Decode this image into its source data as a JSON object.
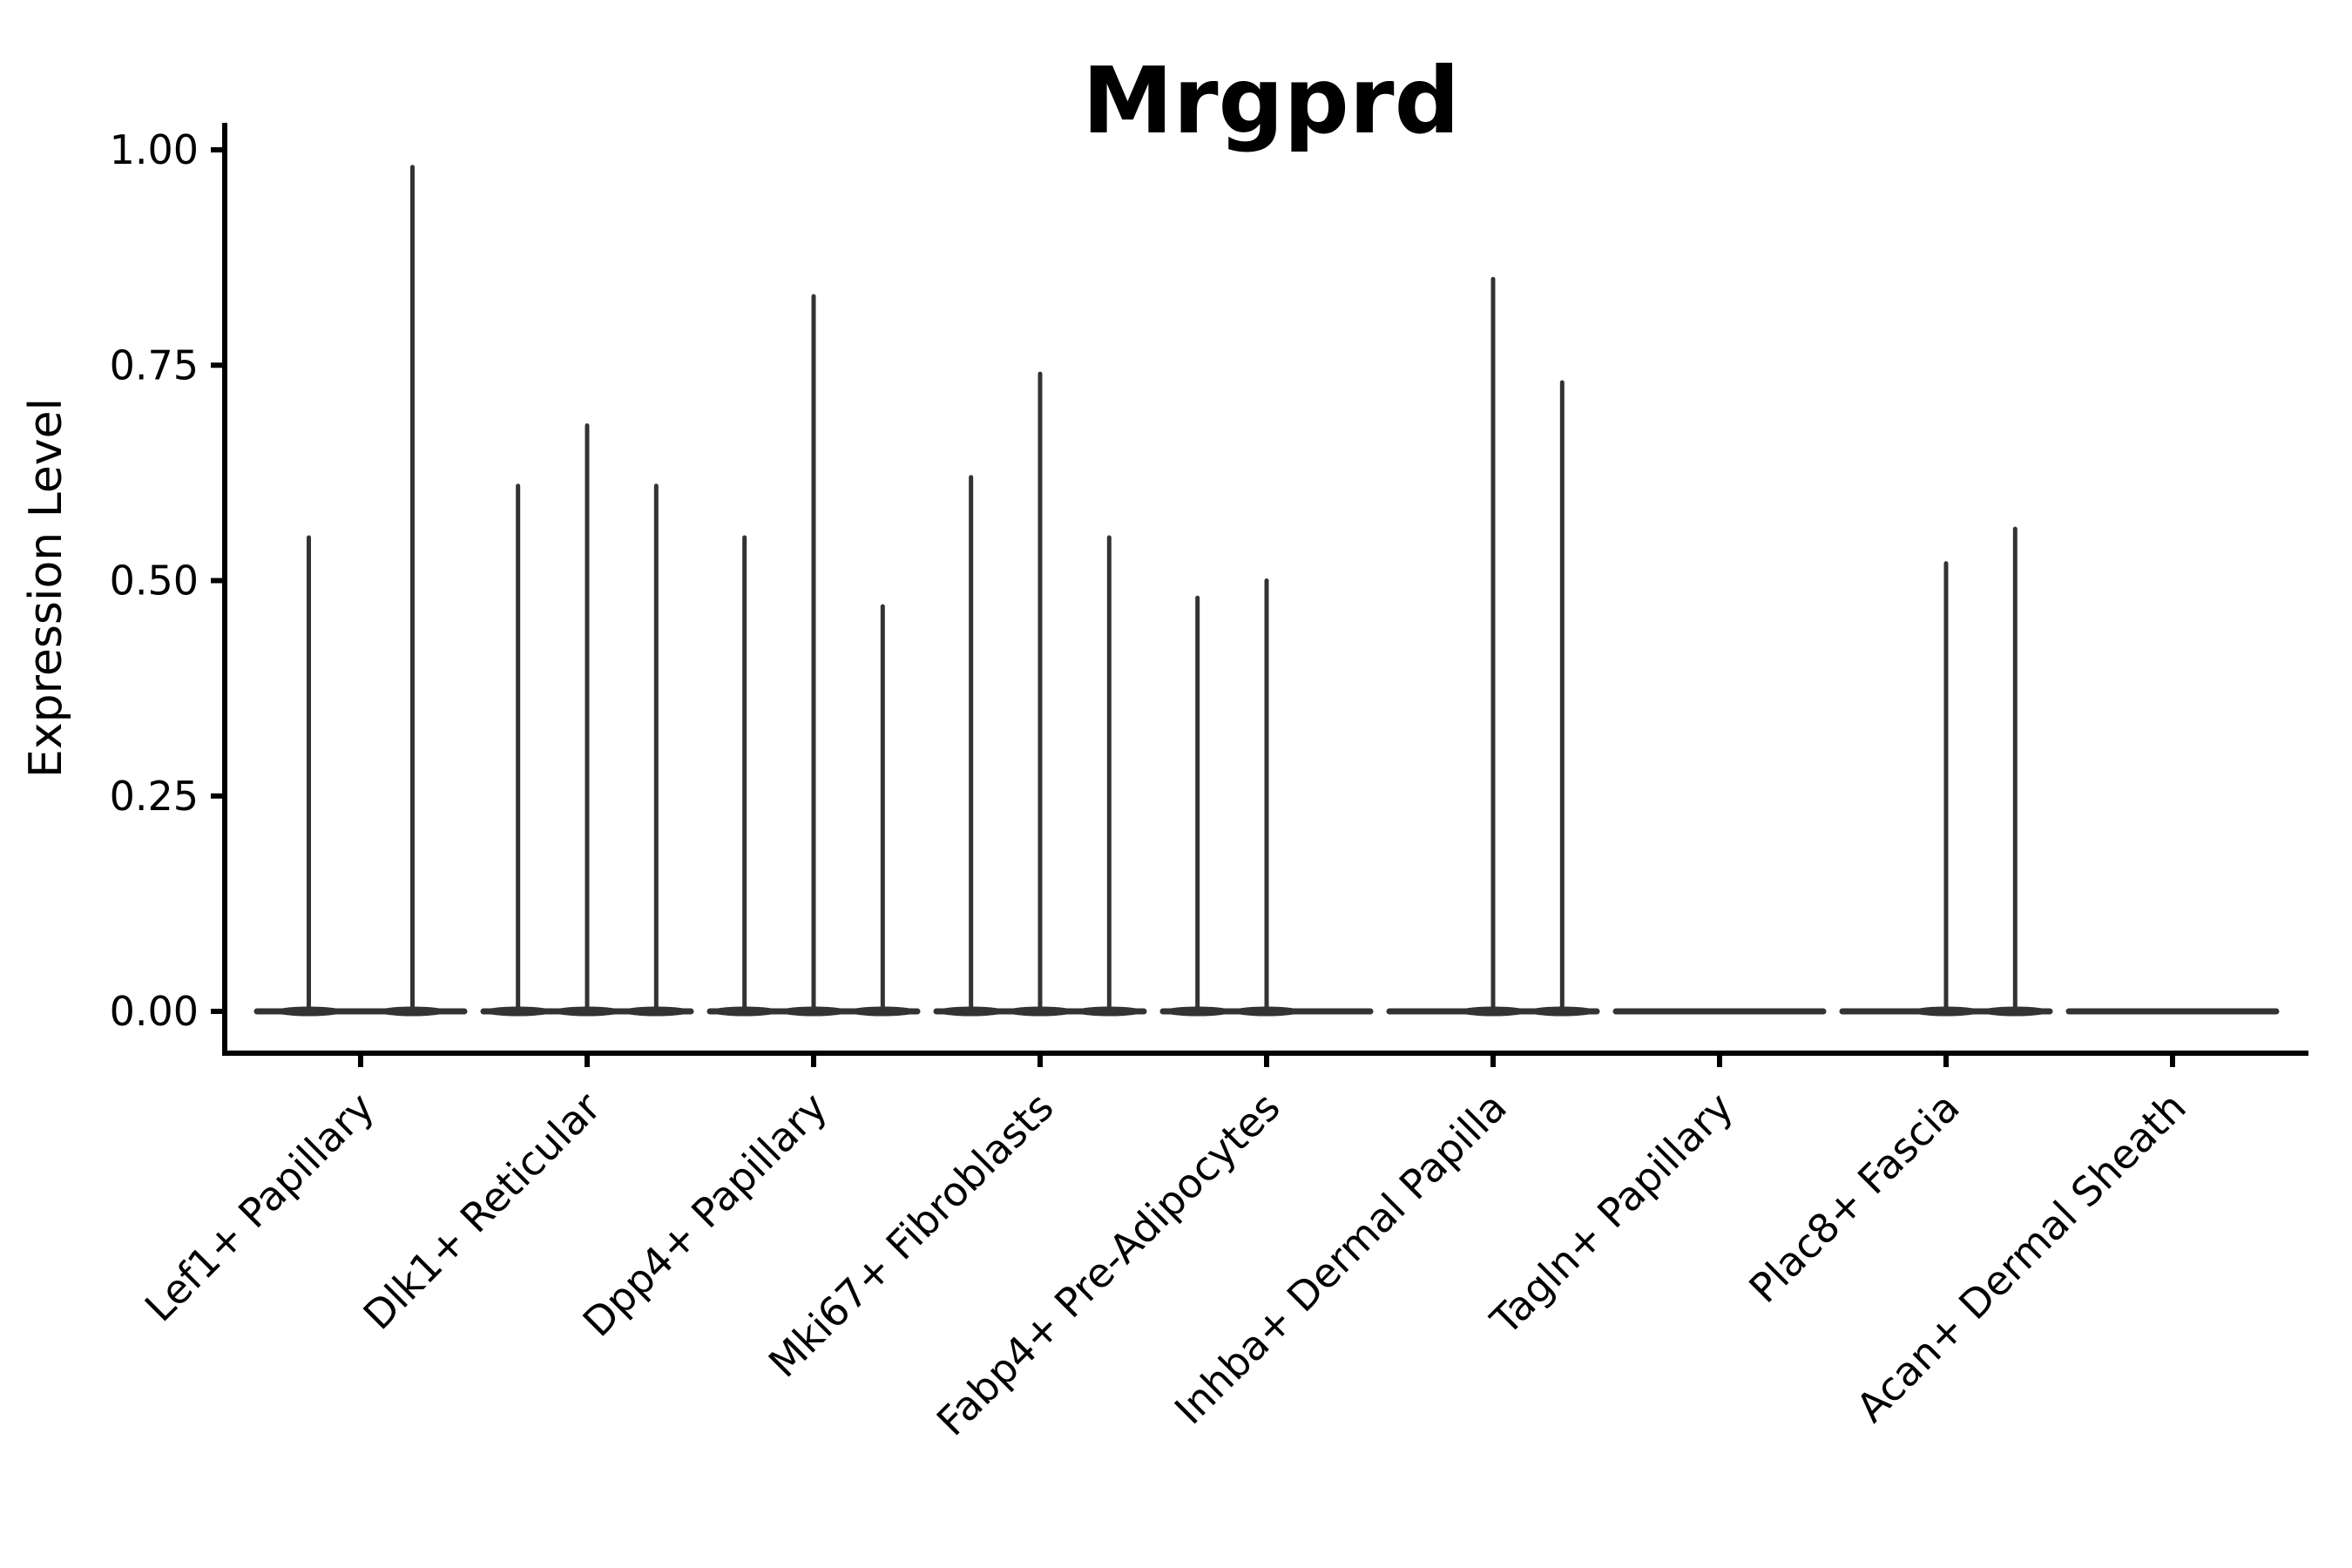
{
  "page": {
    "background_color": "#ffffff"
  },
  "chart_data": {
    "type": "violin",
    "title": "Mrgprd",
    "xlabel": "",
    "ylabel": "Expression Level",
    "ylim": [
      0,
      1.0
    ],
    "yticks": [
      0,
      0.25,
      0.5,
      0.75,
      1.0
    ],
    "ytick_labels": [
      "0.00",
      "0.25",
      "0.50",
      "0.75",
      "1.00"
    ],
    "grid": false,
    "legend_position": "none",
    "violin_color": "#333333",
    "axis_color": "#000000",
    "categories": [
      "Lef1+ Papillary",
      "Dlk1+ Reticular",
      "Dpp4+ Papillary",
      "Mki67+ Fibroblasts",
      "Fabp4+ Pre-Adipocytes",
      "Inhba+ Dermal Papilla",
      "Tagln+ Papillary",
      "Plac8+ Fascia",
      "Acan+ Dermal Sheath"
    ],
    "groups": [
      {
        "label": "Lef1+ Papillary",
        "violins": [
          {
            "rel_pos": 0.25,
            "max_expression": 0.55
          },
          {
            "rel_pos": 0.75,
            "max_expression": 0.98
          }
        ]
      },
      {
        "label": "Dlk1+ Reticular",
        "violins": [
          {
            "rel_pos": 0.1667,
            "max_expression": 0.61
          },
          {
            "rel_pos": 0.5,
            "max_expression": 0.68
          },
          {
            "rel_pos": 0.8333,
            "max_expression": 0.61
          }
        ]
      },
      {
        "label": "Dpp4+ Papillary",
        "violins": [
          {
            "rel_pos": 0.1667,
            "max_expression": 0.55
          },
          {
            "rel_pos": 0.5,
            "max_expression": 0.83
          },
          {
            "rel_pos": 0.8333,
            "max_expression": 0.47
          }
        ]
      },
      {
        "label": "Mki67+ Fibroblasts",
        "violins": [
          {
            "rel_pos": 0.1667,
            "max_expression": 0.62
          },
          {
            "rel_pos": 0.5,
            "max_expression": 0.74
          },
          {
            "rel_pos": 0.8333,
            "max_expression": 0.55
          }
        ]
      },
      {
        "label": "Fabp4+ Pre-Adipocytes",
        "violins": [
          {
            "rel_pos": 0.1667,
            "max_expression": 0.48
          },
          {
            "rel_pos": 0.5,
            "max_expression": 0.5
          }
        ]
      },
      {
        "label": "Inhba+ Dermal Papilla",
        "violins": [
          {
            "rel_pos": 0.5,
            "max_expression": 0.85
          },
          {
            "rel_pos": 0.8333,
            "max_expression": 0.73
          }
        ]
      },
      {
        "label": "Tagln+ Papillary",
        "violins": []
      },
      {
        "label": "Plac8+ Fascia",
        "violins": [
          {
            "rel_pos": 0.5,
            "max_expression": 0.52
          },
          {
            "rel_pos": 0.8333,
            "max_expression": 0.56
          }
        ]
      },
      {
        "label": "Acan+ Dermal Sheath",
        "violins": []
      }
    ]
  }
}
